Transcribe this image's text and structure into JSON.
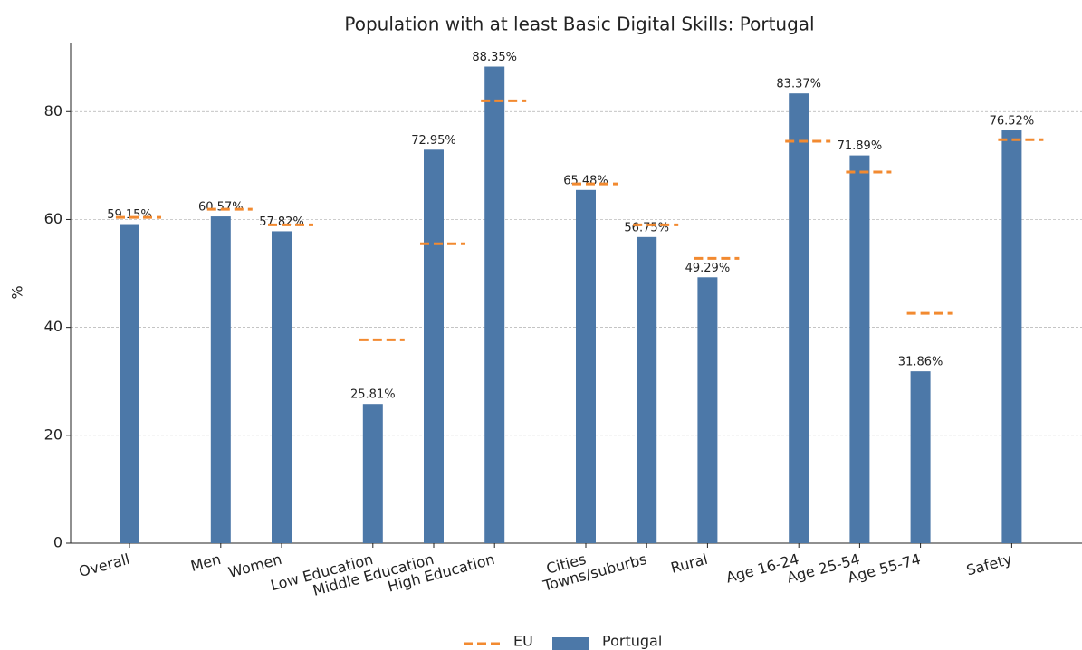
{
  "chart_data": {
    "type": "bar",
    "title": "Population with at least Basic Digital Skills: Portugal",
    "ylabel": "%",
    "categories": [
      "Overall",
      "Men",
      "Women",
      "Low Education",
      "Middle Education",
      "High Education",
      "Cities",
      "Towns/suburbs",
      "Rural",
      "Age 16-24",
      "Age 25-54",
      "Age 55-74",
      "Safety"
    ],
    "series": [
      {
        "name": "Portugal",
        "color": "#4c78a8",
        "values": [
          59.15,
          60.57,
          57.82,
          25.81,
          72.95,
          88.35,
          65.48,
          56.75,
          49.29,
          83.37,
          71.89,
          31.86,
          76.52
        ],
        "value_labels": [
          "59.15%",
          "60.57%",
          "57.82%",
          "25.81%",
          "72.95%",
          "88.35%",
          "65.48%",
          "56.75%",
          "49.29%",
          "83.37%",
          "71.89%",
          "31.86%",
          "76.52%"
        ]
      },
      {
        "name": "EU",
        "color": "#f28a30",
        "values": [
          60.4,
          61.9,
          59.0,
          37.7,
          55.5,
          82.0,
          66.6,
          59.0,
          52.8,
          74.5,
          68.8,
          42.6,
          74.8
        ]
      }
    ],
    "ylim": [
      0,
      92.8
    ],
    "yticks": [
      0,
      20,
      40,
      60,
      80
    ],
    "grid": true
  }
}
